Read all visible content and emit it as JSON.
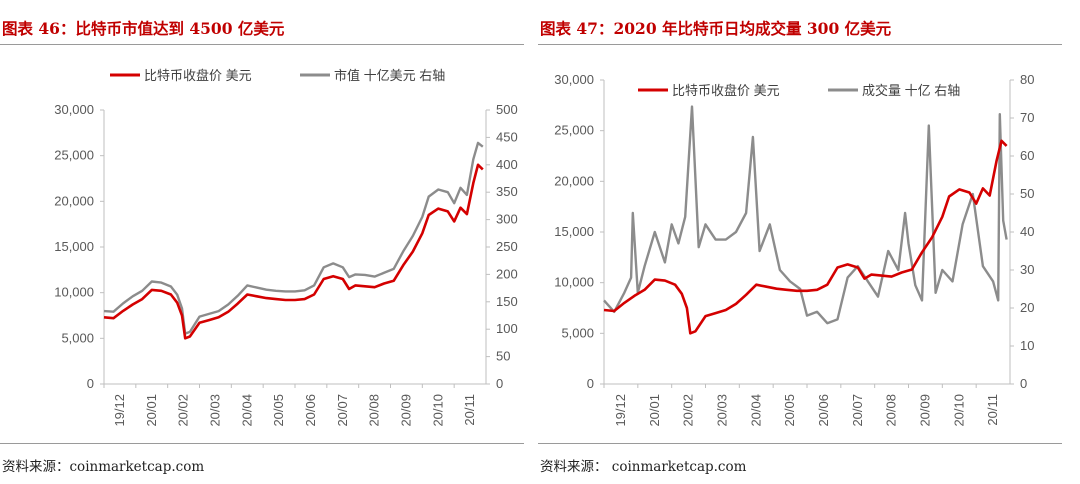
{
  "figures": [
    {
      "title": "图表 46：比特币市值达到 4500 亿美元",
      "source": "资料来源：coinmarketcap.com"
    },
    {
      "title": "图表 47：2020 年比特币日均成交量 300 亿美元",
      "source": "资料来源：  coinmarketcap.com"
    }
  ],
  "chart_data": [
    {
      "type": "line",
      "title": "图表 46：比特币市值达到 4500 亿美元",
      "x_ticks": [
        "19/12",
        "20/01",
        "20/02",
        "20/03",
        "20/04",
        "20/05",
        "20/06",
        "20/07",
        "20/08",
        "20/09",
        "20/10",
        "20/11"
      ],
      "y_left": {
        "range": [
          0,
          30000
        ],
        "ticks": [
          "0",
          "5,000",
          "10,000",
          "15,000",
          "20,000",
          "25,000",
          "30,000"
        ]
      },
      "y_right": {
        "range": [
          0,
          500
        ],
        "ticks": [
          "0",
          "50",
          "100",
          "150",
          "200",
          "250",
          "300",
          "350",
          "400",
          "450",
          "500"
        ]
      },
      "colors": {
        "price": "#d40000",
        "secondary": "#8c8c8c"
      },
      "series": [
        {
          "name": "比特币收盘价 美元",
          "axis": "left",
          "x": [
            0,
            0.3,
            0.6,
            0.9,
            1.2,
            1.5,
            1.8,
            2.1,
            2.3,
            2.45,
            2.55,
            2.7,
            3.0,
            3.3,
            3.6,
            3.9,
            4.2,
            4.5,
            4.8,
            5.1,
            5.4,
            5.7,
            6.0,
            6.3,
            6.6,
            6.9,
            7.2,
            7.5,
            7.7,
            7.9,
            8.2,
            8.5,
            8.8,
            9.1,
            9.4,
            9.7,
            10.0,
            10.2,
            10.5,
            10.8,
            11.0,
            11.2,
            11.4,
            11.6,
            11.75,
            11.9
          ],
          "values": [
            7300,
            7200,
            8000,
            8700,
            9300,
            10300,
            10200,
            9800,
            8900,
            7500,
            5000,
            5200,
            6700,
            7000,
            7300,
            7900,
            8800,
            9800,
            9600,
            9400,
            9300,
            9200,
            9200,
            9300,
            9800,
            11500,
            11800,
            11500,
            10400,
            10800,
            10700,
            10600,
            11000,
            11300,
            13000,
            14500,
            16500,
            18500,
            19200,
            18900,
            17800,
            19300,
            18600,
            22000,
            24000,
            23500
          ]
        },
        {
          "name": "市值 十亿美元 右轴",
          "axis": "right",
          "x": [
            0,
            0.3,
            0.6,
            0.9,
            1.2,
            1.5,
            1.8,
            2.1,
            2.3,
            2.45,
            2.55,
            2.7,
            3.0,
            3.3,
            3.6,
            3.9,
            4.2,
            4.5,
            4.8,
            5.1,
            5.4,
            5.7,
            6.0,
            6.3,
            6.6,
            6.9,
            7.2,
            7.5,
            7.7,
            7.9,
            8.2,
            8.5,
            8.8,
            9.1,
            9.4,
            9.7,
            10.0,
            10.2,
            10.5,
            10.8,
            11.0,
            11.2,
            11.4,
            11.6,
            11.75,
            11.9
          ],
          "values": [
            133,
            132,
            147,
            160,
            170,
            187,
            185,
            178,
            163,
            138,
            92,
            95,
            123,
            128,
            133,
            145,
            161,
            180,
            176,
            172,
            170,
            169,
            169,
            171,
            180,
            213,
            220,
            213,
            195,
            200,
            199,
            196,
            203,
            210,
            242,
            270,
            305,
            342,
            355,
            350,
            330,
            358,
            345,
            410,
            440,
            433
          ]
        }
      ]
    },
    {
      "type": "line",
      "title": "图表 47：2020 年比特币日均成交量 300 亿美元",
      "x_ticks": [
        "19/12",
        "20/01",
        "20/02",
        "20/03",
        "20/04",
        "20/05",
        "20/06",
        "20/07",
        "20/08",
        "20/09",
        "20/10",
        "20/11"
      ],
      "y_left": {
        "range": [
          0,
          30000
        ],
        "ticks": [
          "0",
          "5,000",
          "10,000",
          "15,000",
          "20,000",
          "25,000",
          "30,000"
        ]
      },
      "y_right": {
        "range": [
          0,
          80
        ],
        "ticks": [
          "0",
          "10",
          "20",
          "30",
          "40",
          "50",
          "60",
          "70",
          "80"
        ]
      },
      "colors": {
        "price": "#d40000",
        "secondary": "#8c8c8c"
      },
      "series": [
        {
          "name": "比特币收盘价 美元",
          "axis": "left",
          "x": [
            0,
            0.3,
            0.6,
            0.9,
            1.2,
            1.5,
            1.8,
            2.1,
            2.3,
            2.45,
            2.55,
            2.7,
            3.0,
            3.3,
            3.6,
            3.9,
            4.2,
            4.5,
            4.8,
            5.1,
            5.4,
            5.7,
            6.0,
            6.3,
            6.6,
            6.9,
            7.2,
            7.5,
            7.7,
            7.9,
            8.2,
            8.5,
            8.8,
            9.1,
            9.4,
            9.7,
            10.0,
            10.2,
            10.5,
            10.8,
            11.0,
            11.2,
            11.4,
            11.6,
            11.75,
            11.9
          ],
          "values": [
            7300,
            7200,
            8000,
            8700,
            9300,
            10300,
            10200,
            9800,
            8900,
            7500,
            5000,
            5200,
            6700,
            7000,
            7300,
            7900,
            8800,
            9800,
            9600,
            9400,
            9300,
            9200,
            9200,
            9300,
            9800,
            11500,
            11800,
            11500,
            10400,
            10800,
            10700,
            10600,
            11000,
            11300,
            13000,
            14500,
            16500,
            18500,
            19200,
            18900,
            17800,
            19300,
            18600,
            22000,
            24000,
            23500
          ]
        },
        {
          "name": "成交量 十亿 右轴",
          "axis": "right",
          "x": [
            0,
            0.3,
            0.6,
            0.8,
            0.85,
            1.0,
            1.2,
            1.5,
            1.8,
            2.0,
            2.2,
            2.4,
            2.6,
            2.8,
            3.0,
            3.3,
            3.6,
            3.9,
            4.2,
            4.4,
            4.6,
            4.9,
            5.2,
            5.5,
            5.8,
            6.0,
            6.3,
            6.6,
            6.9,
            7.2,
            7.5,
            7.8,
            8.1,
            8.4,
            8.7,
            8.9,
            9.0,
            9.2,
            9.4,
            9.6,
            9.8,
            10.0,
            10.3,
            10.6,
            10.9,
            11.2,
            11.5,
            11.65,
            11.7,
            11.8,
            11.9
          ],
          "values": [
            22,
            19,
            24,
            28,
            45,
            24,
            31,
            40,
            32,
            42,
            37,
            44,
            73,
            36,
            42,
            38,
            38,
            40,
            45,
            65,
            35,
            42,
            30,
            27,
            25,
            18,
            19,
            16,
            17,
            28,
            31,
            27,
            23,
            35,
            30,
            45,
            37,
            26,
            22,
            68,
            24,
            30,
            27,
            42,
            50,
            31,
            27,
            22,
            71,
            43,
            38
          ]
        }
      ]
    }
  ]
}
